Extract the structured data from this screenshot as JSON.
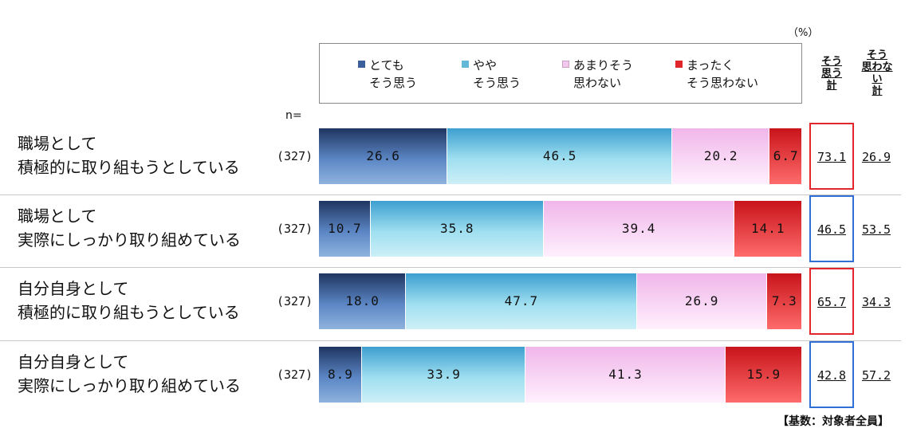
{
  "unit_label": "（%）",
  "n_label": "n=",
  "footnote": "【基数：対象者全員】",
  "legend": [
    {
      "line1": "とても",
      "line2": "そう思う",
      "color": "#3a5f9a"
    },
    {
      "line1": "やや",
      "line2": "そう思う",
      "color": "#62b8d6"
    },
    {
      "line1": "あまりそう",
      "line2": "思わない",
      "color": "#f3c8ef"
    },
    {
      "line1": "まったく",
      "line2": "そう思わない",
      "color": "#e0262b"
    }
  ],
  "column_headers": {
    "agree_total": [
      "そう",
      "思う",
      "計"
    ],
    "disagree_total": [
      "そう",
      "思わな",
      "い",
      "計"
    ]
  },
  "chart_data": {
    "type": "bar",
    "orientation": "horizontal-stacked-100",
    "categories": [
      "職場として\n積極的に取り組もうとしている",
      "職場として\n実際にしっかり取り組めている",
      "自分自身として\n積極的に取り組もうとしている",
      "自分自身として\n実際にしっかり取り組めている"
    ],
    "category_lines": [
      [
        "職場として",
        "積極的に取り組もうとしている"
      ],
      [
        "職場として",
        "実際にしっかり取り組めている"
      ],
      [
        "自分自身として",
        "積極的に取り組もうとしている"
      ],
      [
        "自分自身として",
        "実際にしっかり取り組めている"
      ]
    ],
    "n": [
      "(327)",
      "(327)",
      "(327)",
      "(327)"
    ],
    "series": [
      {
        "name": "とても そう思う",
        "values": [
          26.6,
          10.7,
          18.0,
          8.9
        ]
      },
      {
        "name": "やや そう思う",
        "values": [
          46.5,
          35.8,
          47.7,
          33.9
        ]
      },
      {
        "name": "あまりそう 思わない",
        "values": [
          20.2,
          39.4,
          26.9,
          41.3
        ]
      },
      {
        "name": "まったく そう思わない",
        "values": [
          6.7,
          14.1,
          7.3,
          15.9
        ]
      }
    ],
    "value_labels": [
      [
        "26.6",
        "46.5",
        "20.2",
        "6.7"
      ],
      [
        "10.7",
        "35.8",
        "39.4",
        "14.1"
      ],
      [
        "18.0",
        "47.7",
        "26.9",
        "7.3"
      ],
      [
        "8.9",
        "33.9",
        "41.3",
        "15.9"
      ]
    ],
    "agree_total": [
      "73.1",
      "46.5",
      "65.7",
      "42.8"
    ],
    "disagree_total": [
      "26.9",
      "53.5",
      "34.3",
      "57.2"
    ],
    "agree_total_box_colors": [
      "#e3262b",
      "#2f6fd6",
      "#e3262b",
      "#2f6fd6"
    ],
    "xlim": [
      0,
      100
    ]
  }
}
